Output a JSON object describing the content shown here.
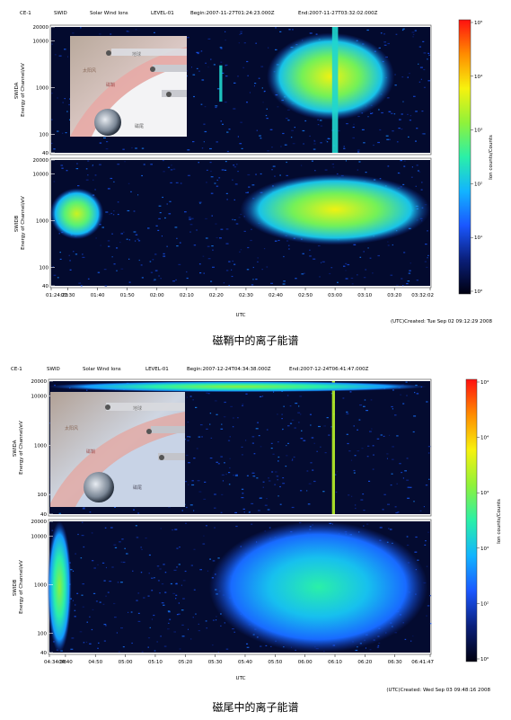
{
  "colors": {
    "spectrogram_colormap": [
      "#000010",
      "#0a1f7a",
      "#1a57ff",
      "#12b4ff",
      "#2af0a8",
      "#8ff23a",
      "#f7f20e",
      "#ff8c00",
      "#ff1010"
    ]
  },
  "chart_data": [
    {
      "type": "heatmap",
      "header": {
        "mission": "CE-1",
        "instrument": "SWID",
        "product": "Solar Wind Ions",
        "level": "LEVEL-01",
        "begin": "Begin:2007-11-27T01:24:23.000Z",
        "end": "End:2007-11-27T03:32:02.000Z"
      },
      "panels": [
        {
          "name": "SWIDA",
          "ylabel": "SWIDA\nEnergy of Channel/eV",
          "yticks": [
            "20000",
            "10000",
            "1000",
            "100",
            "40"
          ],
          "ylim": [
            40,
            20000
          ],
          "yscale": "log",
          "features": [
            {
              "t_start": "02:37",
              "t_end": "03:20",
              "e_low": 200,
              "e_high": 15000,
              "peak_counts": 5000
            },
            {
              "t_start": "02:21",
              "t_end": "02:22",
              "e_low": 500,
              "e_high": 3000,
              "peak_counts": 300
            },
            {
              "t_start": "02:59",
              "t_end": "03:01",
              "e_low": 40,
              "e_high": 20000,
              "peak_counts": 300
            }
          ]
        },
        {
          "name": "SWIDB",
          "ylabel": "SWIDB\nEnergy of Channel/eV",
          "yticks": [
            "20000",
            "10000",
            "1000",
            "100",
            "40"
          ],
          "ylim": [
            40,
            20000
          ],
          "yscale": "log",
          "features": [
            {
              "t_start": "01:24",
              "t_end": "01:42",
              "e_low": 400,
              "e_high": 5000,
              "peak_counts": 3000
            },
            {
              "t_start": "02:28",
              "t_end": "03:32",
              "e_low": 300,
              "e_high": 10000,
              "peak_counts": 5000
            }
          ]
        }
      ],
      "xticks": [
        "01:24:23",
        "01:30",
        "01:40",
        "01:50",
        "02:00",
        "02:10",
        "02:20",
        "02:30",
        "02:40",
        "02:50",
        "03:00",
        "03:10",
        "03:20",
        "03:32:02"
      ],
      "xlabel": "UTC",
      "colorbar": {
        "label": "Ion counts/Counts",
        "ticks": [
          "10⁵",
          "10⁴",
          "10³",
          "10²",
          "10¹",
          "10⁰"
        ],
        "range": [
          1,
          100000
        ],
        "scale": "log"
      },
      "created": "(UTC)Created: Tue Sep 02 09:12:29 2008",
      "inset": {
        "labels": [
          "地球",
          "太阳风",
          "磁鞘",
          "磁尾"
        ]
      },
      "caption": "磁鞘中的离子能谱"
    },
    {
      "type": "heatmap",
      "header": {
        "mission": "CE-1",
        "instrument": "SWID",
        "product": "Solar Wind Ions",
        "level": "LEVEL-01",
        "begin": "Begin:2007-12-24T04:34:38.000Z",
        "end": "End:2007-12-24T06:41:47.000Z"
      },
      "panels": [
        {
          "name": "SWIDA",
          "ylabel": "SWIDA\nEnergy of Channel/eV",
          "yticks": [
            "20000",
            "10000",
            "1000",
            "100",
            "40"
          ],
          "ylim": [
            40,
            20000
          ],
          "yscale": "log",
          "features": [
            {
              "t_start": "06:09",
              "t_end": "06:10",
              "e_low": 40,
              "e_high": 20000,
              "peak_counts": 1000
            },
            {
              "t_start": "04:34",
              "t_end": "06:41",
              "e_low": 12000,
              "e_high": 20000,
              "peak_counts": 300
            }
          ]
        },
        {
          "name": "SWIDB",
          "ylabel": "SWIDB\nEnergy of Channel/eV",
          "yticks": [
            "20000",
            "10000",
            "1000",
            "100",
            "40"
          ],
          "ylim": [
            40,
            20000
          ],
          "yscale": "log",
          "features": [
            {
              "t_start": "04:34",
              "t_end": "04:42",
              "e_low": 40,
              "e_high": 20000,
              "peak_counts": 300
            },
            {
              "t_start": "05:28",
              "t_end": "06:41",
              "e_low": 40,
              "e_high": 20000,
              "peak_counts": 100
            }
          ]
        }
      ],
      "xticks": [
        "04:34:38",
        "04:40",
        "04:50",
        "05:00",
        "05:10",
        "05:20",
        "05:30",
        "05:40",
        "05:50",
        "06:00",
        "06:10",
        "06:20",
        "06:30",
        "06:41:47"
      ],
      "xlabel": "UTC",
      "colorbar": {
        "label": "Ion counts/Counts",
        "ticks": [
          "10⁴",
          "10⁴",
          "10³",
          "10³",
          "10²",
          "10⁰"
        ],
        "range": [
          1,
          10000
        ],
        "scale": "log"
      },
      "created": "(UTC)Created: Wed Sep 03 09:48:16 2008",
      "inset": {
        "labels": [
          "地球",
          "太阳风",
          "磁鞘",
          "磁尾"
        ]
      },
      "caption": "磁尾中的离子能谱"
    }
  ]
}
